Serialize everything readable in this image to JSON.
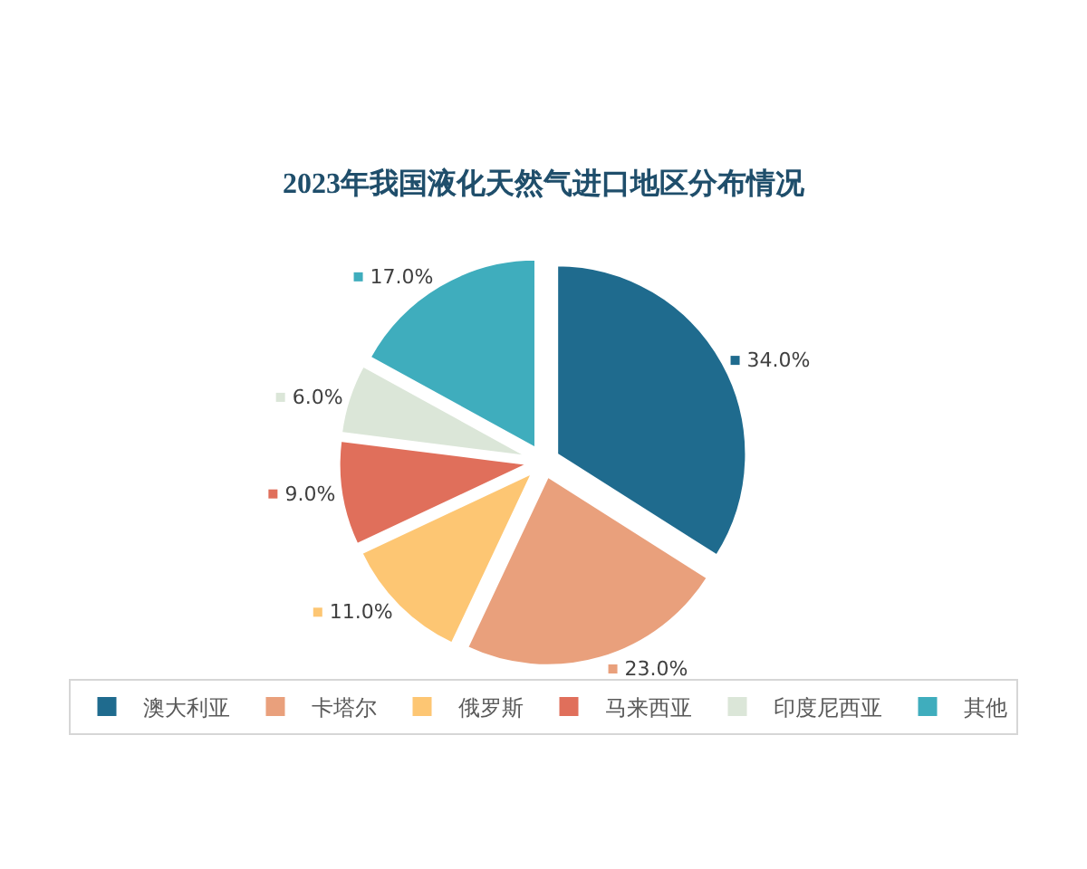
{
  "chart_data": {
    "type": "pie",
    "title": "2023年我国液化天然气进口地区分布情况",
    "categories": [
      "澳大利亚",
      "卡塔尔",
      "俄罗斯",
      "马来西亚",
      "印度尼西亚",
      "其他"
    ],
    "values": [
      34,
      23,
      11,
      9,
      6,
      17
    ],
    "colors": [
      "#1f6b8e",
      "#e9a07c",
      "#fdc673",
      "#e06f5b",
      "#dbe6d8",
      "#3fadbd"
    ],
    "value_labels": [
      "34.0%",
      "23.0%",
      "11.0%",
      "9.0%",
      "6.0%",
      "17.0%"
    ],
    "legend": "bottom"
  }
}
